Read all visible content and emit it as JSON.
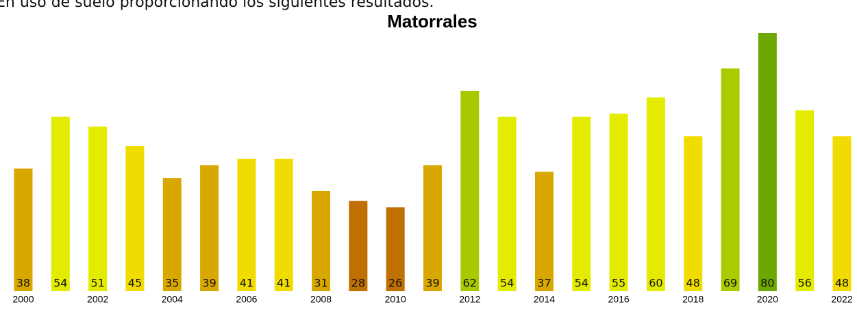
{
  "intro": "En uso de suelo proporcionando los siguientes resultados.",
  "chart_data": {
    "type": "bar",
    "title": "Matorrales",
    "categories": [
      "2000",
      null,
      "2002",
      null,
      "2004",
      null,
      "2006",
      null,
      "2008",
      null,
      "2010",
      null,
      "2012",
      null,
      "2014",
      null,
      "2016",
      null,
      "2018",
      null,
      "2020",
      null,
      "2022"
    ],
    "values": [
      38,
      54,
      51,
      45,
      35,
      39,
      41,
      41,
      31,
      28,
      26,
      39,
      62,
      54,
      37,
      54,
      55,
      60,
      48,
      69,
      80,
      56,
      48
    ],
    "colors": [
      "#d9a800",
      "#e3ec00",
      "#e3ec00",
      "#f0dc00",
      "#d9a800",
      "#d9a800",
      "#f0dc00",
      "#f0dc00",
      "#d9a800",
      "#c07000",
      "#c07000",
      "#d9a800",
      "#a8c800",
      "#e3ec00",
      "#d9a800",
      "#e3ec00",
      "#e3ec00",
      "#e3ec00",
      "#f0dc00",
      "#a8cc00",
      "#6ca800",
      "#e3ec00",
      "#f0dc00"
    ]
  }
}
